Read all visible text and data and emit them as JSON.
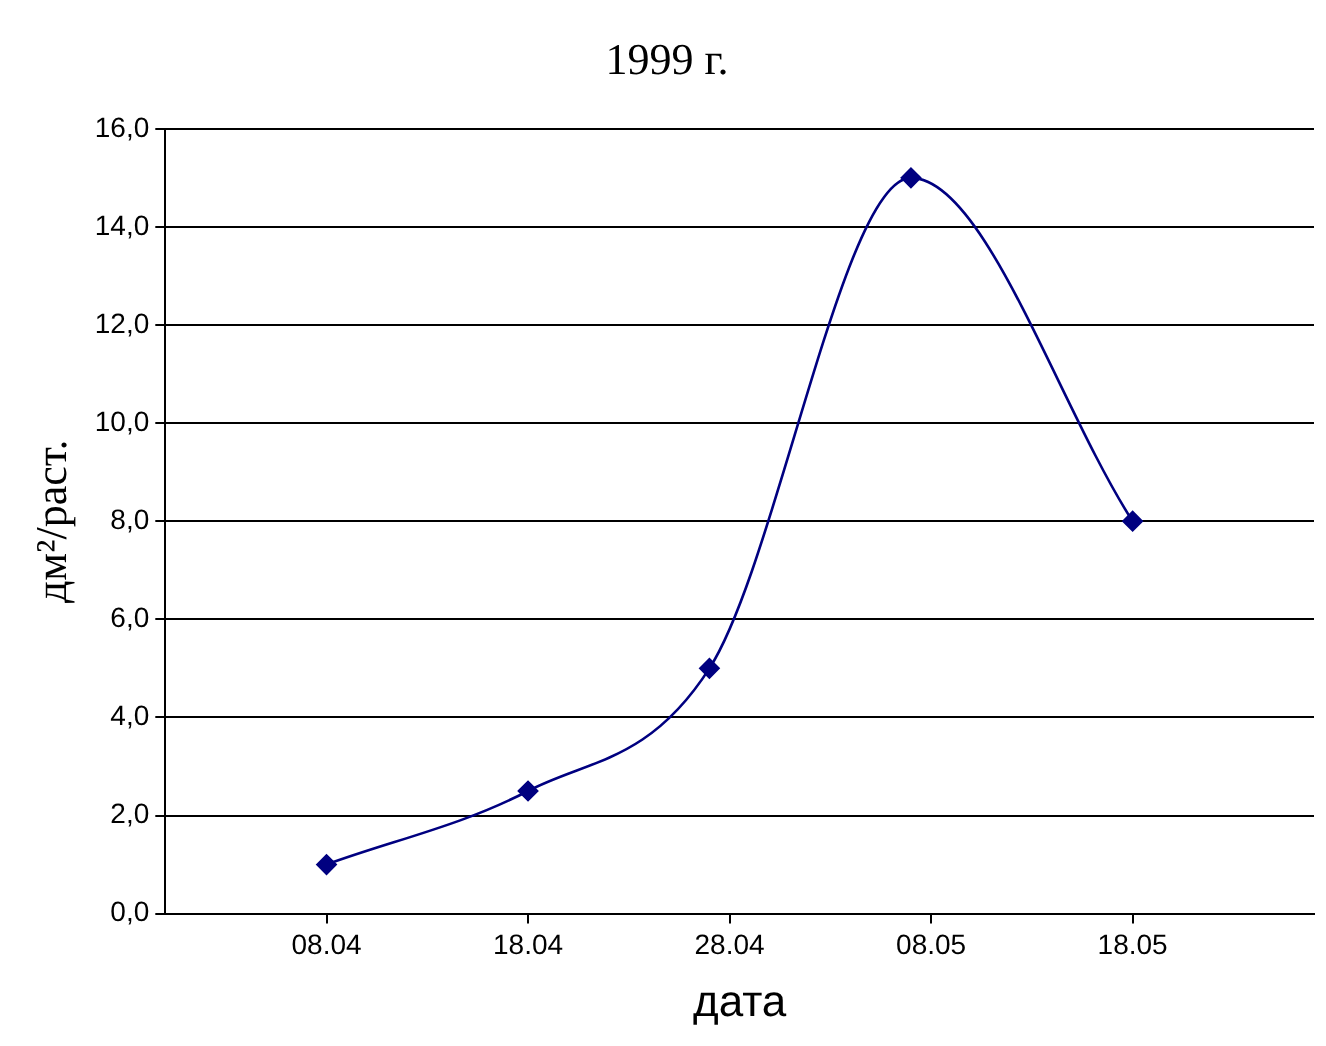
{
  "chart_data": {
    "type": "line",
    "title": "1999 г.",
    "xlabel": "дата",
    "ylabel": "дм²/раст.",
    "x": [
      "--04-08",
      "--04-18",
      "--04-27",
      "--05-07",
      "--05-18"
    ],
    "series": [
      {
        "color": "#000080",
        "values": [
          1.0,
          2.5,
          5.0,
          15.0,
          8.0
        ]
      }
    ],
    "xlim": [
      "--03-31",
      "--05-27"
    ],
    "xticks": [
      {
        "value": "--04-08",
        "label": "08.04"
      },
      {
        "value": "--04-18",
        "label": "18.04"
      },
      {
        "value": "--04-28",
        "label": "28.04"
      },
      {
        "value": "--05-08",
        "label": "08.05"
      },
      {
        "value": "--05-18",
        "label": "18.05"
      }
    ],
    "ylim": [
      0,
      16
    ],
    "yticks": [
      {
        "value": 0,
        "label": "0,0"
      },
      {
        "value": 2,
        "label": "2,0"
      },
      {
        "value": 4,
        "label": "4,0"
      },
      {
        "value": 6,
        "label": "6,0"
      },
      {
        "value": 8,
        "label": "8,0"
      },
      {
        "value": 10,
        "label": "10,0"
      },
      {
        "value": 12,
        "label": "12,0"
      },
      {
        "value": 14,
        "label": "14,0"
      },
      {
        "value": 16,
        "label": "16,0"
      }
    ],
    "grid": "y",
    "legend": false,
    "marker": "diamond",
    "line_style": "solid"
  }
}
